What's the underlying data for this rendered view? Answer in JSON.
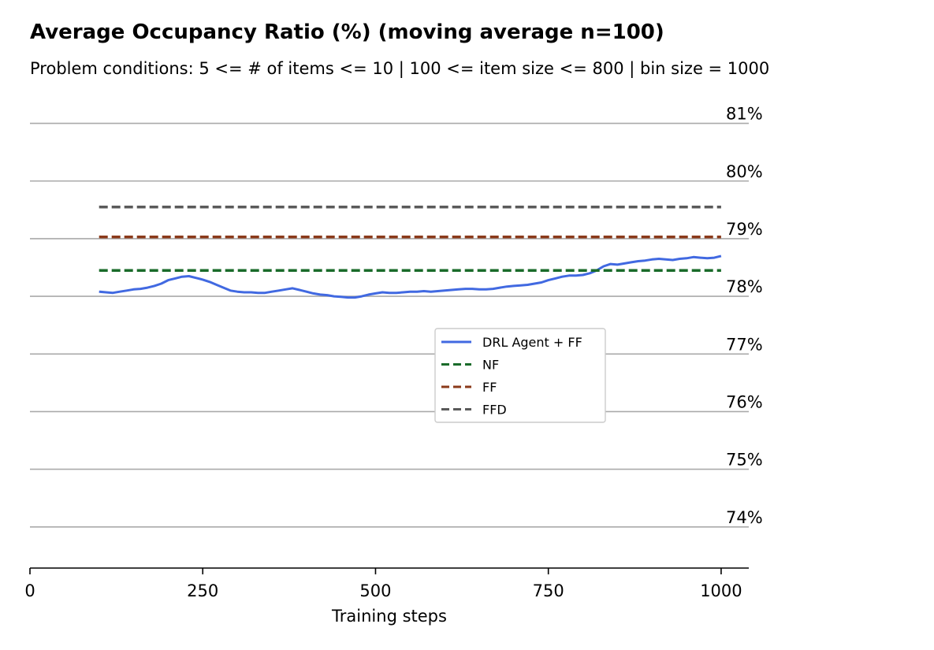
{
  "title": "Average Occupancy Ratio (%) (moving average n=100)",
  "subtitle": "Problem conditions: 5 <= # of items <= 10 | 100 <= item size <= 800 | bin size = 1000",
  "chart_data": {
    "type": "line",
    "title": "Average Occupancy Ratio (%) (moving average n=100)",
    "subtitle": "Problem conditions: 5 <= # of items <= 10 | 100 <= item size <= 800 | bin size = 1000",
    "xlabel": "Training steps",
    "ylabel": "",
    "xlim": [
      0,
      1040
    ],
    "ylim": [
      73.3,
      81.5
    ],
    "xticks": [
      0,
      250,
      500,
      750,
      1000
    ],
    "xtick_labels": [
      "0",
      "250",
      "500",
      "750",
      "1000"
    ],
    "yticks": [
      74,
      75,
      76,
      77,
      78,
      79,
      80,
      81
    ],
    "ytick_labels": [
      "74%",
      "75%",
      "76%",
      "77%",
      "78%",
      "79%",
      "80%",
      "81%"
    ],
    "grid": "horizontal",
    "legend_position": "center-right",
    "series": [
      {
        "name": "DRL Agent + FF",
        "style": "solid",
        "color": "#4169e1",
        "x": [
          100,
          110,
          120,
          130,
          140,
          150,
          160,
          170,
          180,
          190,
          200,
          210,
          220,
          230,
          240,
          250,
          260,
          270,
          280,
          290,
          300,
          310,
          320,
          330,
          340,
          350,
          360,
          370,
          380,
          390,
          400,
          410,
          420,
          430,
          440,
          450,
          460,
          470,
          480,
          490,
          500,
          510,
          520,
          530,
          540,
          550,
          560,
          570,
          580,
          590,
          600,
          610,
          620,
          630,
          640,
          650,
          660,
          670,
          680,
          690,
          700,
          710,
          720,
          730,
          740,
          750,
          760,
          770,
          780,
          790,
          800,
          810,
          820,
          830,
          840,
          850,
          860,
          870,
          880,
          890,
          900,
          910,
          920,
          930,
          940,
          950,
          960,
          970,
          980,
          990,
          1000
        ],
        "values": [
          78.08,
          78.07,
          78.06,
          78.08,
          78.1,
          78.12,
          78.13,
          78.15,
          78.18,
          78.22,
          78.28,
          78.31,
          78.34,
          78.35,
          78.32,
          78.29,
          78.25,
          78.2,
          78.15,
          78.1,
          78.08,
          78.07,
          78.07,
          78.06,
          78.06,
          78.08,
          78.1,
          78.12,
          78.14,
          78.11,
          78.08,
          78.05,
          78.03,
          78.02,
          78.0,
          77.99,
          77.98,
          77.98,
          78.0,
          78.03,
          78.05,
          78.07,
          78.06,
          78.06,
          78.07,
          78.08,
          78.08,
          78.09,
          78.08,
          78.09,
          78.1,
          78.11,
          78.12,
          78.13,
          78.13,
          78.12,
          78.12,
          78.13,
          78.15,
          78.17,
          78.18,
          78.19,
          78.2,
          78.22,
          78.24,
          78.28,
          78.31,
          78.34,
          78.36,
          78.36,
          78.37,
          78.4,
          78.45,
          78.52,
          78.56,
          78.55,
          78.57,
          78.59,
          78.61,
          78.62,
          78.64,
          78.65,
          78.64,
          78.63,
          78.65,
          78.66,
          78.68,
          78.67,
          78.66,
          78.67,
          78.7
        ]
      },
      {
        "name": "NF",
        "style": "dashed",
        "color": "#1a6b2a",
        "x": [
          100,
          1000
        ],
        "values": [
          78.45,
          78.45
        ]
      },
      {
        "name": "FF",
        "style": "dashed",
        "color": "#8b3a1a",
        "x": [
          100,
          1000
        ],
        "values": [
          79.03,
          79.03
        ]
      },
      {
        "name": "FFD",
        "style": "dashed",
        "color": "#5a5a5a",
        "x": [
          100,
          1000
        ],
        "values": [
          79.55,
          79.55
        ]
      }
    ]
  }
}
